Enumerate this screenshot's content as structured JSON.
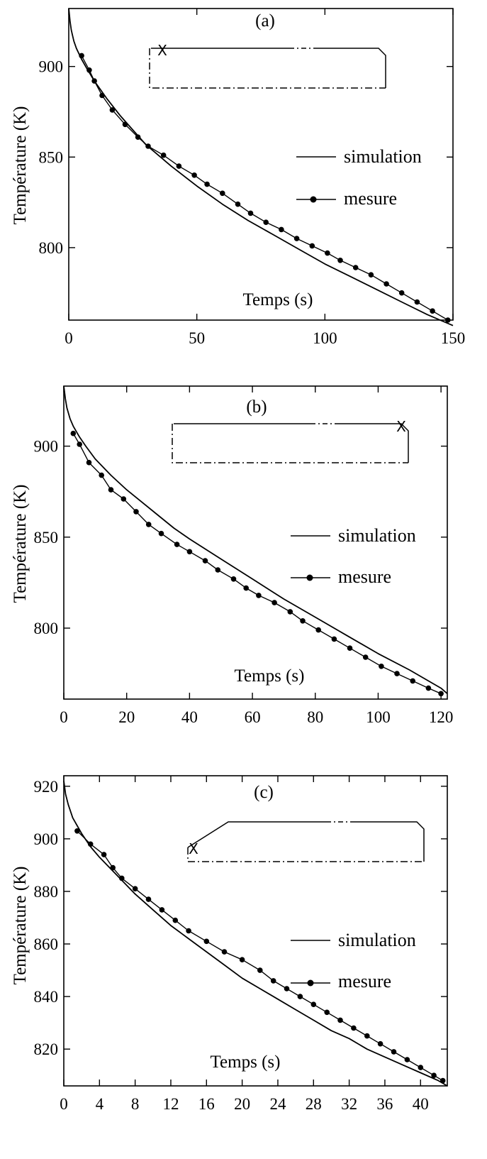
{
  "chart_data": [
    {
      "type": "line",
      "title": "(a)",
      "xlabel": "Temps (s)",
      "ylabel": "Température (K)",
      "xlim": [
        0,
        150
      ],
      "ylim": [
        760,
        932
      ],
      "xticks": [
        0,
        50,
        100,
        150
      ],
      "yticks": [
        800,
        850,
        900
      ],
      "legend_position": "right",
      "thermocouple_marker": "X",
      "series": [
        {
          "name": "simulation",
          "style": "line",
          "x": [
            0,
            0.5,
            1,
            2,
            3,
            5,
            7,
            10,
            15,
            20,
            25,
            30,
            40,
            50,
            60,
            70,
            80,
            90,
            100,
            110,
            120,
            130,
            140,
            150
          ],
          "y": [
            932,
            925,
            920,
            914,
            910,
            904,
            899,
            892,
            882,
            873,
            865,
            857,
            845,
            834,
            824,
            815,
            807,
            799,
            791,
            784,
            777,
            770,
            763,
            757
          ]
        },
        {
          "name": "mesure",
          "style": "markers+line",
          "x": [
            5,
            8,
            10,
            13,
            17,
            22,
            27,
            31,
            37,
            43,
            49,
            54,
            60,
            66,
            71,
            77,
            83,
            89,
            95,
            101,
            106,
            112,
            118,
            124,
            130,
            136,
            142,
            148
          ],
          "y": [
            906,
            898,
            892,
            884,
            876,
            868,
            861,
            856,
            851,
            845,
            840,
            835,
            830,
            824,
            819,
            814,
            810,
            805,
            801,
            797,
            793,
            789,
            785,
            780,
            775,
            770,
            765,
            760
          ]
        }
      ]
    },
    {
      "type": "line",
      "title": "(b)",
      "xlabel": "Temps (s)",
      "ylabel": "Température (K)",
      "xlim": [
        0,
        122
      ],
      "ylim": [
        761,
        933
      ],
      "xticks": [
        0,
        20,
        40,
        60,
        80,
        100,
        120
      ],
      "yticks": [
        800,
        850,
        900
      ],
      "legend_position": "right",
      "thermocouple_marker": "X",
      "series": [
        {
          "name": "simulation",
          "style": "line",
          "x": [
            0,
            0.5,
            1,
            2,
            3,
            5,
            7,
            10,
            15,
            20,
            25,
            30,
            35,
            40,
            50,
            60,
            70,
            80,
            90,
            100,
            110,
            120,
            122
          ],
          "y": [
            933,
            926,
            921,
            915,
            911,
            905,
            900,
            893,
            884,
            876,
            869,
            862,
            855,
            849,
            838,
            827,
            816,
            806,
            796,
            786,
            777,
            767,
            764
          ]
        },
        {
          "name": "mesure",
          "style": "markers+line",
          "x": [
            3,
            5,
            8,
            12,
            15,
            19,
            23,
            27,
            31,
            36,
            40,
            45,
            49,
            54,
            58,
            62,
            67,
            72,
            76,
            81,
            86,
            91,
            96,
            101,
            106,
            111,
            116,
            120
          ],
          "y": [
            907,
            901,
            891,
            884,
            876,
            871,
            864,
            857,
            852,
            846,
            842,
            837,
            832,
            827,
            822,
            818,
            814,
            809,
            804,
            799,
            794,
            789,
            784,
            779,
            775,
            771,
            767,
            764
          ]
        }
      ]
    },
    {
      "type": "line",
      "title": "(c)",
      "xlabel": "Temps (s)",
      "ylabel": "Température (K)",
      "xlim": [
        0,
        43
      ],
      "ylim": [
        806,
        924
      ],
      "xticks": [
        0,
        4,
        8,
        12,
        16,
        20,
        24,
        28,
        32,
        36,
        40
      ],
      "yticks": [
        820,
        840,
        860,
        880,
        900,
        920
      ],
      "legend_position": "right",
      "thermocouple_marker": "X",
      "series": [
        {
          "name": "simulation",
          "style": "line",
          "x": [
            0,
            0.2,
            0.5,
            1,
            2,
            3,
            4,
            6,
            8,
            10,
            12,
            14,
            16,
            18,
            20,
            22,
            24,
            26,
            28,
            30,
            32,
            34,
            36,
            38,
            40,
            42,
            43
          ],
          "y": [
            922,
            917,
            913,
            908,
            902,
            897,
            893,
            886,
            879,
            873,
            867,
            862,
            857,
            852,
            847,
            843,
            839,
            835,
            831,
            827,
            824,
            820,
            817,
            814,
            811,
            808,
            806
          ]
        },
        {
          "name": "mesure",
          "style": "markers+line",
          "x": [
            1.5,
            3,
            4.5,
            5.5,
            6.5,
            8,
            9.5,
            11,
            12.5,
            14,
            16,
            18,
            20,
            22,
            23.5,
            25,
            26.5,
            28,
            29.5,
            31,
            32.5,
            34,
            35.5,
            37,
            38.5,
            40,
            41.5,
            42.5
          ],
          "y": [
            903,
            898,
            894,
            889,
            885,
            881,
            877,
            873,
            869,
            865,
            861,
            857,
            854,
            850,
            846,
            843,
            840,
            837,
            834,
            831,
            828,
            825,
            822,
            819,
            816,
            813,
            810,
            808
          ]
        }
      ]
    }
  ]
}
